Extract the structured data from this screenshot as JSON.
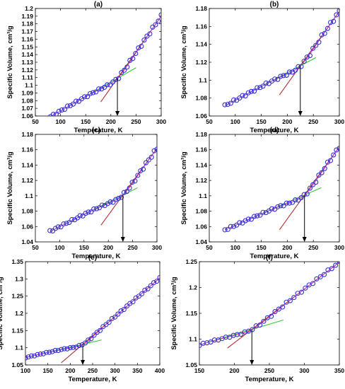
{
  "chart_data": [
    {
      "panel": "(a)",
      "type": "scatter",
      "title": "(a)",
      "xlabel": "Temperature, K",
      "ylabel": "Specific Volume, cm³/g",
      "xlim": [
        50,
        300
      ],
      "ylim": [
        1.06,
        1.2
      ],
      "xticks": [
        50,
        100,
        150,
        200,
        250,
        300
      ],
      "yticks": [
        1.06,
        1.07,
        1.08,
        1.09,
        1.1,
        1.11,
        1.12,
        1.13,
        1.14,
        1.15,
        1.16,
        1.17,
        1.18,
        1.19,
        1.2
      ],
      "ytick_labels": [
        "1.06",
        "1.07",
        "1.08",
        "1.09",
        "1.1",
        "1.11",
        "1.12",
        "1.13",
        "1.14",
        "1.15",
        "1.16",
        "1.17",
        "1.18",
        "1.19",
        "1.2"
      ],
      "data": {
        "x_start": 80,
        "x_end": 300,
        "count": 40,
        "glass_slope": 0.000375,
        "rubber_slope": 0.00093,
        "transition_T": 213,
        "transition_V": 1.109
      },
      "green_fit_x": [
        120,
        250
      ],
      "red_fit_x": [
        180,
        300
      ],
      "arrow": {
        "x": 213,
        "from_y": 1.109,
        "to_y": 1.06
      }
    },
    {
      "panel": "(b)",
      "type": "scatter",
      "title": "(b)",
      "xlabel": "Temperature, K",
      "ylabel": "Specific Volume, cm³/g",
      "xlim": [
        50,
        300
      ],
      "ylim": [
        1.06,
        1.18
      ],
      "xticks": [
        50,
        100,
        150,
        200,
        250,
        300
      ],
      "yticks": [
        1.06,
        1.08,
        1.1,
        1.12,
        1.14,
        1.16,
        1.18
      ],
      "ytick_labels": [
        "1.06",
        "1.08",
        "1.1",
        "1.12",
        "1.14",
        "1.16",
        "1.18"
      ],
      "data": {
        "x_start": 80,
        "x_end": 300,
        "count": 40,
        "glass_slope": 0.000307,
        "rubber_slope": 0.00081,
        "transition_T": 225,
        "transition_V": 1.116
      },
      "green_fit_x": [
        120,
        255
      ],
      "red_fit_x": [
        185,
        300
      ],
      "arrow": {
        "x": 225,
        "from_y": 1.116,
        "to_y": 1.06
      }
    },
    {
      "panel": "(c)",
      "type": "scatter",
      "title": "(c)",
      "xlabel": "Temperature, K",
      "ylabel": "Specific Volume, cm³/g",
      "xlim": [
        50,
        300
      ],
      "ylim": [
        1.04,
        1.18
      ],
      "xticks": [
        50,
        100,
        150,
        200,
        250,
        300
      ],
      "yticks": [
        1.04,
        1.06,
        1.08,
        1.1,
        1.12,
        1.14,
        1.16,
        1.18
      ],
      "ytick_labels": [
        "1.04",
        "1.06",
        "1.08",
        "1.1",
        "1.12",
        "1.14",
        "1.16",
        "1.18"
      ],
      "data": {
        "x_start": 80,
        "x_end": 300,
        "count": 40,
        "glass_slope": 0.000316,
        "rubber_slope": 0.00087,
        "transition_T": 230,
        "transition_V": 1.101
      },
      "green_fit_x": [
        120,
        260
      ],
      "red_fit_x": [
        185,
        300
      ],
      "arrow": {
        "x": 230,
        "from_y": 1.101,
        "to_y": 1.04
      }
    },
    {
      "panel": "(d)",
      "type": "scatter",
      "title": "(d)",
      "xlabel": "Temperature, K",
      "ylabel": "Specific Volume, cm³/g",
      "xlim": [
        50,
        300
      ],
      "ylim": [
        1.04,
        1.18
      ],
      "xticks": [
        50,
        100,
        150,
        200,
        250,
        300
      ],
      "yticks": [
        1.04,
        1.06,
        1.08,
        1.1,
        1.12,
        1.14,
        1.16,
        1.18
      ],
      "ytick_labels": [
        "1.04",
        "1.06",
        "1.08",
        "1.1",
        "1.12",
        "1.14",
        "1.16",
        "1.18"
      ],
      "data": {
        "x_start": 80,
        "x_end": 300,
        "count": 40,
        "glass_slope": 0.000297,
        "rubber_slope": 0.00094,
        "transition_T": 233,
        "transition_V": 1.101
      },
      "green_fit_x": [
        120,
        265
      ],
      "red_fit_x": [
        185,
        300
      ],
      "arrow": {
        "x": 233,
        "from_y": 1.101,
        "to_y": 1.04
      }
    },
    {
      "panel": "(e)",
      "type": "scatter",
      "title": "(e)",
      "xlabel": "Temperature, K",
      "ylabel": "Specific Volume, cm³/g",
      "xlim": [
        100,
        400
      ],
      "ylim": [
        1.05,
        1.35
      ],
      "xticks": [
        100,
        150,
        200,
        250,
        300,
        350,
        400
      ],
      "yticks": [
        1.05,
        1.1,
        1.15,
        1.2,
        1.25,
        1.3,
        1.35
      ],
      "ytick_labels": [
        "1.05",
        "1.1",
        "1.15",
        "1.2",
        "1.25",
        "1.3",
        "1.35"
      ],
      "data": {
        "x_start": 100,
        "x_end": 400,
        "count": 46,
        "glass_slope": 0.000302,
        "rubber_slope": 0.00112,
        "transition_T": 228,
        "transition_V": 1.11
      },
      "green_fit_x": [
        150,
        270
      ],
      "red_fit_x": [
        180,
        400
      ],
      "arrow": {
        "x": 228,
        "from_y": 1.11,
        "to_y": 1.05
      }
    },
    {
      "panel": "(f)",
      "type": "scatter",
      "title": "(f)",
      "xlabel": "Temperature, K",
      "ylabel": "Specific Volume, cm³/g",
      "xlim": [
        150,
        350
      ],
      "ylim": [
        1.05,
        1.25
      ],
      "xticks": [
        150,
        200,
        250,
        300,
        350
      ],
      "yticks": [
        1.05,
        1.1,
        1.15,
        1.2,
        1.25
      ],
      "ytick_labels": [
        "1.05",
        "1.1",
        "1.15",
        "1.2",
        "1.25"
      ],
      "data": {
        "x_start": 150,
        "x_end": 350,
        "count": 38,
        "glass_slope": 0.0004,
        "rubber_slope": 0.00104,
        "transition_T": 225,
        "transition_V": 1.119
      },
      "green_fit_x": [
        155,
        270
      ],
      "red_fit_x": [
        190,
        350
      ],
      "arrow": {
        "x": 225,
        "from_y": 1.119,
        "to_y": 1.05
      }
    }
  ],
  "colors": {
    "markers": "#3333cc",
    "red_fit": "#b03030",
    "green_fit": "#33cc33",
    "smooth_curve": "#cc33cc",
    "arrow": "#000000"
  }
}
